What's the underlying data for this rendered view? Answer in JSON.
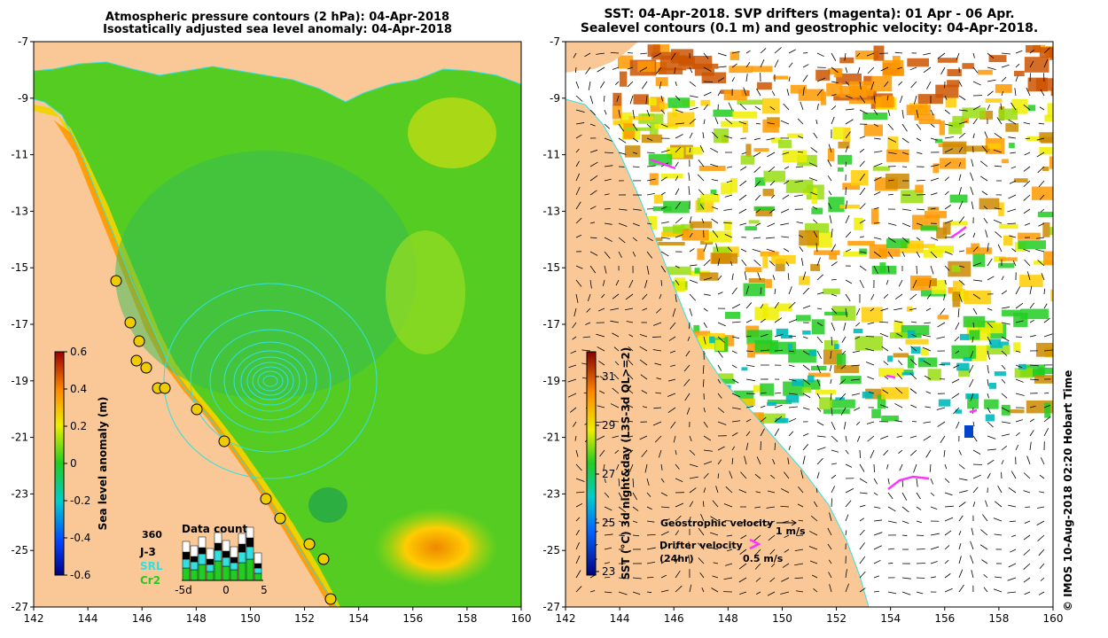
{
  "left_panel": {
    "title_line1": "Atmospheric pressure contours (2 hPa): 04-Apr-2018",
    "title_line2": "Isostatically adjusted sea level anomaly: 04-Apr-2018",
    "x_ticks": [
      "142",
      "144",
      "146",
      "148",
      "150",
      "152",
      "154",
      "156",
      "158",
      "160"
    ],
    "y_ticks": [
      "-7",
      "-9",
      "-11",
      "-13",
      "-15",
      "-17",
      "-19",
      "-21",
      "-23",
      "-25",
      "-27"
    ],
    "colorbar": {
      "label": "Sea level anomaly (m)",
      "ticks": [
        "0.6",
        "0.4",
        "0.2",
        "0",
        "-0.2",
        "-0.4",
        "-0.6"
      ],
      "min": -0.6,
      "max": 0.6
    },
    "data_count": {
      "title": "Data count",
      "top_value": "360",
      "legend": [
        {
          "label": "J-3",
          "color": "#000000"
        },
        {
          "label": "SRL",
          "color": "#33e0e0"
        },
        {
          "label": "Cr2",
          "color": "#22cc22"
        }
      ],
      "x_ticks": [
        "-5d",
        "0",
        "5"
      ]
    }
  },
  "right_panel": {
    "title_line1": "SST: 04-Apr-2018. SVP drifters (magenta): 01 Apr - 06 Apr.",
    "title_line2": "Sealevel contours (0.1 m) and geostrophic velocity: 04-Apr-2018.",
    "x_ticks": [
      "142",
      "144",
      "146",
      "148",
      "150",
      "152",
      "154",
      "156",
      "158",
      "160"
    ],
    "y_ticks": [
      "-7",
      "-9",
      "-11",
      "-13",
      "-15",
      "-17",
      "-19",
      "-21",
      "-23",
      "-25",
      "-27"
    ],
    "colorbar": {
      "label": "SST (°C) 3d night&day (L3S-3d QL>=2)",
      "ticks": [
        "31",
        "29",
        "27",
        "25",
        "23"
      ],
      "min": 23,
      "max": 32
    },
    "legend": {
      "geo_label": "Geostrophic velocity",
      "geo_scale": "1 m/s",
      "drifter_label_1": "Drifter velocity",
      "drifter_label_2": "(24hr)",
      "drifter_scale": "0.5 m/s"
    },
    "credit": "© IMOS 10-Aug-2018 02:20 Hobart Time"
  },
  "colors": {
    "land": "#f9c896",
    "coast_line": "#33e0e0",
    "drifter": "#ff33ff",
    "ocean_green": "#44cc22"
  }
}
